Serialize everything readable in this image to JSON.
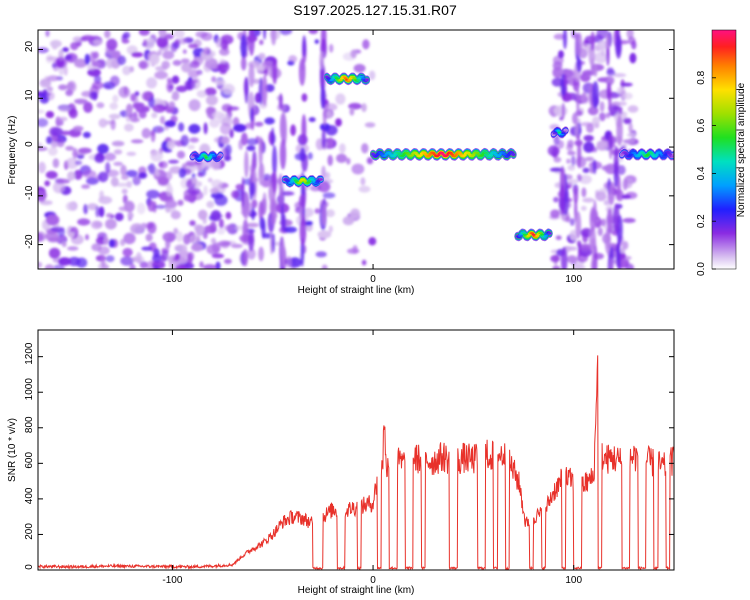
{
  "title": "S197.2025.127.15.31.R07",
  "chart_data": [
    {
      "type": "heatmap",
      "xlabel": "Height of straight line (km)",
      "ylabel": "Frequency (Hz)",
      "xlim": [
        -167,
        150
      ],
      "ylim": [
        -25,
        24
      ],
      "x_ticks": [
        -100,
        0,
        100
      ],
      "y_ticks": [
        -20,
        -10,
        0,
        10,
        20
      ],
      "colorbar": {
        "label": "Normalized spectral amplitude",
        "range": [
          0,
          1
        ],
        "ticks": [
          "0.0",
          "0.2",
          "0.4",
          "0.6",
          "0.8"
        ]
      },
      "ridge_segments": [
        {
          "x0": -90,
          "x1": -76,
          "freq": -2,
          "peak": 0.55
        },
        {
          "x0": -44,
          "x1": -26,
          "freq": -7,
          "peak": 0.75
        },
        {
          "x0": -23,
          "x1": -3,
          "freq": 14,
          "peak": 0.9
        },
        {
          "x0": 0,
          "x1": 70,
          "freq": -1.5,
          "peak": 1.0
        },
        {
          "x0": 72,
          "x1": 88,
          "freq": -18,
          "peak": 0.95
        },
        {
          "x0": 90,
          "x1": 96,
          "freq": 3,
          "peak": 0.5
        },
        {
          "x0": 124,
          "x1": 150,
          "freq": -1.5,
          "peak": 0.55
        }
      ]
    },
    {
      "type": "line",
      "xlabel": "Height of straight line (km)",
      "ylabel": "SNR (10 * v/v)",
      "xlim": [
        -167,
        150
      ],
      "ylim": [
        0,
        1350
      ],
      "x_ticks": [
        -100,
        0,
        100
      ],
      "y_ticks": [
        0,
        200,
        400,
        600,
        800,
        1000,
        1200
      ],
      "color": "#e8312a",
      "series": [
        {
          "x": [
            -167,
            -150,
            -130,
            -110,
            -90,
            -80,
            -70,
            -65,
            -60,
            -55,
            -50,
            -45,
            -40,
            -35,
            -30,
            -25,
            -20,
            -15,
            -10,
            -5,
            0,
            3,
            6,
            10,
            15,
            20,
            25,
            30,
            35,
            40,
            45,
            50,
            55,
            60,
            65,
            70,
            73,
            76,
            80,
            85,
            90,
            95,
            100,
            105,
            110,
            112,
            113,
            115,
            120,
            125,
            130,
            135,
            140,
            145,
            150
          ],
          "y": [
            20,
            18,
            22,
            20,
            18,
            22,
            30,
            80,
            120,
            150,
            200,
            270,
            300,
            290,
            260,
            300,
            340,
            330,
            350,
            360,
            380,
            560,
            600,
            620,
            600,
            630,
            620,
            610,
            640,
            600,
            630,
            620,
            650,
            640,
            650,
            560,
            480,
            260,
            300,
            320,
            440,
            520,
            500,
            480,
            520,
            1100,
            700,
            620,
            630,
            600,
            640,
            620,
            600,
            580,
            620
          ]
        }
      ],
      "dropouts": [
        [
          -30,
          -25
        ],
        [
          -18,
          -14
        ],
        [
          -8,
          -6
        ],
        [
          2,
          4
        ],
        [
          8,
          12
        ],
        [
          16,
          20
        ],
        [
          24,
          26
        ],
        [
          38,
          42
        ],
        [
          52,
          56
        ],
        [
          60,
          62
        ],
        [
          66,
          68
        ],
        [
          78,
          80
        ],
        [
          84,
          86
        ],
        [
          94,
          96
        ],
        [
          100,
          104
        ],
        [
          112,
          114
        ],
        [
          124,
          128
        ],
        [
          132,
          136
        ],
        [
          140,
          142
        ],
        [
          146,
          148
        ]
      ]
    }
  ]
}
